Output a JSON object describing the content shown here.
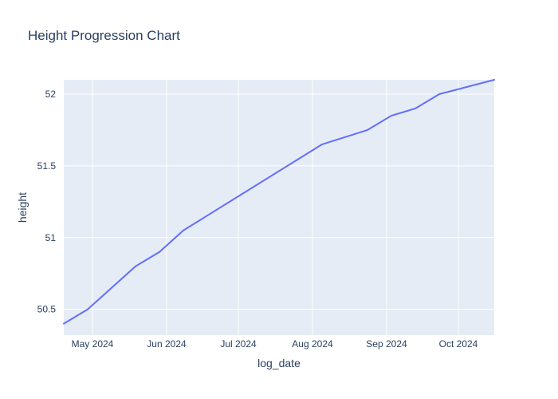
{
  "chart_data": {
    "type": "line",
    "title": "Height Progression Chart",
    "xlabel": "log_date",
    "ylabel": "height",
    "x_ticks": [
      "May 2024",
      "Jun 2024",
      "Jul 2024",
      "Aug 2024",
      "Sep 2024",
      "Oct 2024"
    ],
    "x_tick_dates": [
      "2024-05-01",
      "2024-06-01",
      "2024-07-01",
      "2024-08-01",
      "2024-09-01",
      "2024-10-01"
    ],
    "y_ticks": [
      "50.5",
      "51",
      "51.5",
      "52"
    ],
    "y_tick_values": [
      50.5,
      51,
      51.5,
      52
    ],
    "xlim": [
      "2024-04-19",
      "2024-10-16"
    ],
    "ylim": [
      50.32,
      52.1
    ],
    "grid": true,
    "series": [
      {
        "color": "#636efa",
        "x": [
          "2024-04-19",
          "2024-04-29",
          "2024-05-19",
          "2024-05-29",
          "2024-06-08",
          "2024-08-05",
          "2024-08-24",
          "2024-09-03",
          "2024-09-13",
          "2024-09-23",
          "2024-10-16"
        ],
        "y": [
          50.4,
          50.5,
          50.8,
          50.9,
          51.05,
          51.65,
          51.75,
          51.85,
          51.9,
          52.0,
          52.1
        ]
      }
    ]
  },
  "colors": {
    "plot_background": "#e5ecf6",
    "grid": "#ffffff",
    "text": "#2a3f5f"
  }
}
